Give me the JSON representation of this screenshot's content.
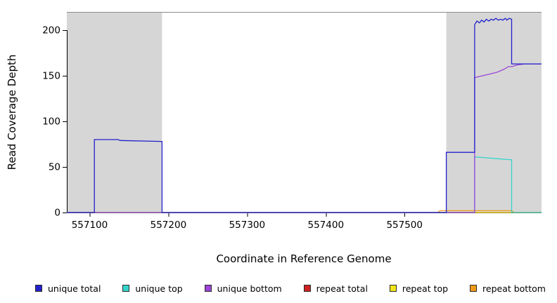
{
  "chart_data": {
    "type": "line",
    "title": "",
    "xlabel": "Coordinate in Reference Genome",
    "ylabel": "Read Coverage Depth",
    "xlim": [
      557071,
      557674
    ],
    "ylim": [
      0,
      220
    ],
    "xticks": [
      557100,
      557200,
      557300,
      557400,
      557500
    ],
    "yticks": [
      0,
      50,
      100,
      150,
      200
    ],
    "grid": false,
    "legend_position": "bottom",
    "shaded_regions": [
      {
        "x0": 557071,
        "x1": 557192,
        "color": "#d6d6d6"
      },
      {
        "x0": 557553,
        "x1": 557674,
        "color": "#d6d6d6"
      }
    ],
    "series": [
      {
        "name": "unique total",
        "color": "#2222CC",
        "points": [
          [
            557071,
            0
          ],
          [
            557106,
            0
          ],
          [
            557106,
            80
          ],
          [
            557136,
            80
          ],
          [
            557139,
            79
          ],
          [
            557190,
            78
          ],
          [
            557192,
            78
          ],
          [
            557192,
            0
          ],
          [
            557553,
            0
          ],
          [
            557553,
            66
          ],
          [
            557589,
            66
          ],
          [
            557589,
            206
          ],
          [
            557592,
            210
          ],
          [
            557595,
            208
          ],
          [
            557598,
            211
          ],
          [
            557601,
            209
          ],
          [
            557604,
            212
          ],
          [
            557607,
            210
          ],
          [
            557610,
            212
          ],
          [
            557613,
            211
          ],
          [
            557616,
            213
          ],
          [
            557619,
            211
          ],
          [
            557622,
            212
          ],
          [
            557625,
            211
          ],
          [
            557628,
            213
          ],
          [
            557630,
            211
          ],
          [
            557633,
            213
          ],
          [
            557636,
            212
          ],
          [
            557636,
            163
          ],
          [
            557674,
            163
          ]
        ]
      },
      {
        "name": "unique top",
        "color": "#35D4CB",
        "points": [
          [
            557071,
            0
          ],
          [
            557589,
            0
          ],
          [
            557589,
            61
          ],
          [
            557604,
            60
          ],
          [
            557619,
            59
          ],
          [
            557633,
            58
          ],
          [
            557636,
            58
          ],
          [
            557636,
            0
          ],
          [
            557674,
            0
          ]
        ]
      },
      {
        "name": "unique bottom",
        "color": "#9B44D6",
        "points": [
          [
            557071,
            0
          ],
          [
            557589,
            0
          ],
          [
            557589,
            148
          ],
          [
            557599,
            150
          ],
          [
            557609,
            152
          ],
          [
            557618,
            154
          ],
          [
            557626,
            157
          ],
          [
            557632,
            160
          ],
          [
            557636,
            160
          ],
          [
            557644,
            162
          ],
          [
            557653,
            163
          ],
          [
            557674,
            163
          ]
        ]
      },
      {
        "name": "repeat total",
        "color": "#CC2222",
        "points": [
          [
            557071,
            0
          ],
          [
            557674,
            0
          ]
        ]
      },
      {
        "name": "repeat top",
        "color": "#F2E51C",
        "points": [
          [
            557071,
            0
          ],
          [
            557674,
            0
          ]
        ]
      },
      {
        "name": "repeat bottom",
        "color": "#F09A18",
        "points": [
          [
            557071,
            0
          ],
          [
            557542,
            0
          ],
          [
            557545,
            2
          ],
          [
            557636,
            2
          ],
          [
            557639,
            0
          ],
          [
            557674,
            0
          ]
        ]
      }
    ],
    "draw_order": [
      3,
      4,
      5,
      1,
      2,
      0
    ]
  }
}
